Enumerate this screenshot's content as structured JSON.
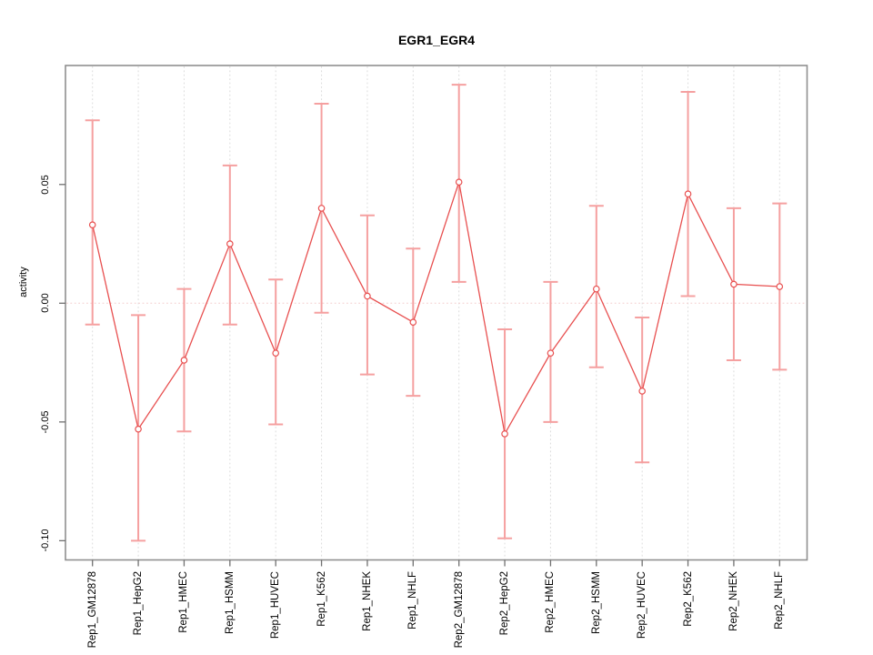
{
  "title": "EGR1_EGR4",
  "chart_data": {
    "type": "line",
    "subtype": "points-with-error-bars",
    "title": "EGR1_EGR4",
    "xlabel": "",
    "ylabel": "activity",
    "categories": [
      "Rep1_GM12878",
      "Rep1_HepG2",
      "Rep1_HMEC",
      "Rep1_HSMM",
      "Rep1_HUVEC",
      "Rep1_K562",
      "Rep1_NHEK",
      "Rep1_NHLF",
      "Rep2_GM12878",
      "Rep2_HepG2",
      "Rep2_HMEC",
      "Rep2_HSMM",
      "Rep2_HUVEC",
      "Rep2_K562",
      "Rep2_NHEK",
      "Rep2_NHLF"
    ],
    "series": [
      {
        "name": "activity",
        "values": [
          0.033,
          -0.053,
          -0.024,
          0.025,
          -0.021,
          0.04,
          0.003,
          -0.008,
          0.051,
          -0.055,
          -0.021,
          0.006,
          -0.037,
          0.046,
          0.008,
          0.007
        ],
        "error_upper": [
          0.077,
          -0.005,
          0.006,
          0.058,
          0.01,
          0.084,
          0.037,
          0.023,
          0.092,
          -0.011,
          0.009,
          0.041,
          -0.006,
          0.089,
          0.04,
          0.042
        ],
        "error_lower": [
          -0.009,
          -0.1,
          -0.054,
          -0.009,
          -0.051,
          -0.004,
          -0.03,
          -0.039,
          0.009,
          -0.099,
          -0.05,
          -0.027,
          -0.067,
          0.003,
          -0.024,
          -0.028
        ]
      }
    ],
    "yticks": [
      "0.05",
      "0.00",
      "-0.05",
      "-0.10"
    ],
    "ytick_values": [
      0.05,
      0.0,
      -0.05,
      -0.1
    ],
    "ylim": [
      -0.108,
      0.1
    ],
    "grid": "dotted vertical gridline per category; dotted horizontal line at y=0",
    "legend": "none",
    "marker": "open-circle",
    "colors": {
      "line_and_points": "#e85050",
      "error_bars": "#f5a0a0",
      "zero_line": "#f3cdcd",
      "gridline": "#dcdcdc",
      "axis_box": "#8f8f8f",
      "tick": "#707070",
      "text": "#000000",
      "background": "#ffffff"
    }
  }
}
